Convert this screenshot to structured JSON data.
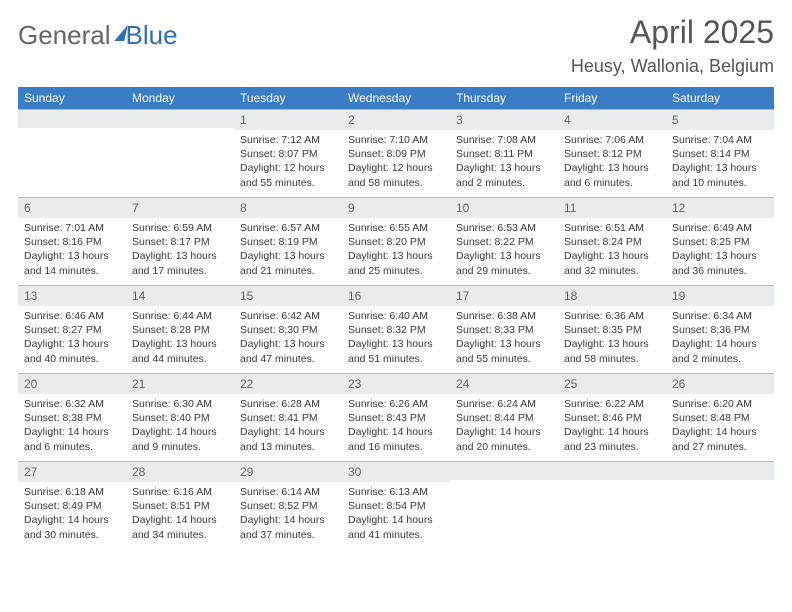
{
  "brand": {
    "text_general": "General",
    "text_blue": "Blue"
  },
  "header": {
    "month_title": "April 2025",
    "location": "Heusy, Wallonia, Belgium"
  },
  "colors": {
    "header_blue": "#3a7cc5",
    "light_gray": "#e9ecef",
    "rule": "#b5b5b5",
    "background": "#ffffff"
  },
  "calendar": {
    "type": "table",
    "day_labels": [
      "Sunday",
      "Monday",
      "Tuesday",
      "Wednesday",
      "Thursday",
      "Friday",
      "Saturday"
    ],
    "fonts": {
      "day_header_fontsize": 12,
      "daynum_fontsize": 12,
      "content_fontsize": 10.5,
      "month_title_fontsize": 32,
      "location_fontsize": 18
    },
    "weeks": [
      [
        {
          "num": "",
          "content": ""
        },
        {
          "num": "",
          "content": ""
        },
        {
          "num": "1",
          "content": "Sunrise: 7:12 AM\nSunset: 8:07 PM\nDaylight: 12 hours\nand 55 minutes."
        },
        {
          "num": "2",
          "content": "Sunrise: 7:10 AM\nSunset: 8:09 PM\nDaylight: 12 hours\nand 58 minutes."
        },
        {
          "num": "3",
          "content": "Sunrise: 7:08 AM\nSunset: 8:11 PM\nDaylight: 13 hours\nand 2 minutes."
        },
        {
          "num": "4",
          "content": "Sunrise: 7:06 AM\nSunset: 8:12 PM\nDaylight: 13 hours\nand 6 minutes."
        },
        {
          "num": "5",
          "content": "Sunrise: 7:04 AM\nSunset: 8:14 PM\nDaylight: 13 hours\nand 10 minutes."
        }
      ],
      [
        {
          "num": "6",
          "content": "Sunrise: 7:01 AM\nSunset: 8:16 PM\nDaylight: 13 hours\nand 14 minutes."
        },
        {
          "num": "7",
          "content": "Sunrise: 6:59 AM\nSunset: 8:17 PM\nDaylight: 13 hours\nand 17 minutes."
        },
        {
          "num": "8",
          "content": "Sunrise: 6:57 AM\nSunset: 8:19 PM\nDaylight: 13 hours\nand 21 minutes."
        },
        {
          "num": "9",
          "content": "Sunrise: 6:55 AM\nSunset: 8:20 PM\nDaylight: 13 hours\nand 25 minutes."
        },
        {
          "num": "10",
          "content": "Sunrise: 6:53 AM\nSunset: 8:22 PM\nDaylight: 13 hours\nand 29 minutes."
        },
        {
          "num": "11",
          "content": "Sunrise: 6:51 AM\nSunset: 8:24 PM\nDaylight: 13 hours\nand 32 minutes."
        },
        {
          "num": "12",
          "content": "Sunrise: 6:49 AM\nSunset: 8:25 PM\nDaylight: 13 hours\nand 36 minutes."
        }
      ],
      [
        {
          "num": "13",
          "content": "Sunrise: 6:46 AM\nSunset: 8:27 PM\nDaylight: 13 hours\nand 40 minutes."
        },
        {
          "num": "14",
          "content": "Sunrise: 6:44 AM\nSunset: 8:28 PM\nDaylight: 13 hours\nand 44 minutes."
        },
        {
          "num": "15",
          "content": "Sunrise: 6:42 AM\nSunset: 8:30 PM\nDaylight: 13 hours\nand 47 minutes."
        },
        {
          "num": "16",
          "content": "Sunrise: 6:40 AM\nSunset: 8:32 PM\nDaylight: 13 hours\nand 51 minutes."
        },
        {
          "num": "17",
          "content": "Sunrise: 6:38 AM\nSunset: 8:33 PM\nDaylight: 13 hours\nand 55 minutes."
        },
        {
          "num": "18",
          "content": "Sunrise: 6:36 AM\nSunset: 8:35 PM\nDaylight: 13 hours\nand 58 minutes."
        },
        {
          "num": "19",
          "content": "Sunrise: 6:34 AM\nSunset: 8:36 PM\nDaylight: 14 hours\nand 2 minutes."
        }
      ],
      [
        {
          "num": "20",
          "content": "Sunrise: 6:32 AM\nSunset: 8:38 PM\nDaylight: 14 hours\nand 6 minutes."
        },
        {
          "num": "21",
          "content": "Sunrise: 6:30 AM\nSunset: 8:40 PM\nDaylight: 14 hours\nand 9 minutes."
        },
        {
          "num": "22",
          "content": "Sunrise: 6:28 AM\nSunset: 8:41 PM\nDaylight: 14 hours\nand 13 minutes."
        },
        {
          "num": "23",
          "content": "Sunrise: 6:26 AM\nSunset: 8:43 PM\nDaylight: 14 hours\nand 16 minutes."
        },
        {
          "num": "24",
          "content": "Sunrise: 6:24 AM\nSunset: 8:44 PM\nDaylight: 14 hours\nand 20 minutes."
        },
        {
          "num": "25",
          "content": "Sunrise: 6:22 AM\nSunset: 8:46 PM\nDaylight: 14 hours\nand 23 minutes."
        },
        {
          "num": "26",
          "content": "Sunrise: 6:20 AM\nSunset: 8:48 PM\nDaylight: 14 hours\nand 27 minutes."
        }
      ],
      [
        {
          "num": "27",
          "content": "Sunrise: 6:18 AM\nSunset: 8:49 PM\nDaylight: 14 hours\nand 30 minutes."
        },
        {
          "num": "28",
          "content": "Sunrise: 6:16 AM\nSunset: 8:51 PM\nDaylight: 14 hours\nand 34 minutes."
        },
        {
          "num": "29",
          "content": "Sunrise: 6:14 AM\nSunset: 8:52 PM\nDaylight: 14 hours\nand 37 minutes."
        },
        {
          "num": "30",
          "content": "Sunrise: 6:13 AM\nSunset: 8:54 PM\nDaylight: 14 hours\nand 41 minutes."
        },
        {
          "num": "",
          "content": ""
        },
        {
          "num": "",
          "content": ""
        },
        {
          "num": "",
          "content": ""
        }
      ]
    ]
  }
}
